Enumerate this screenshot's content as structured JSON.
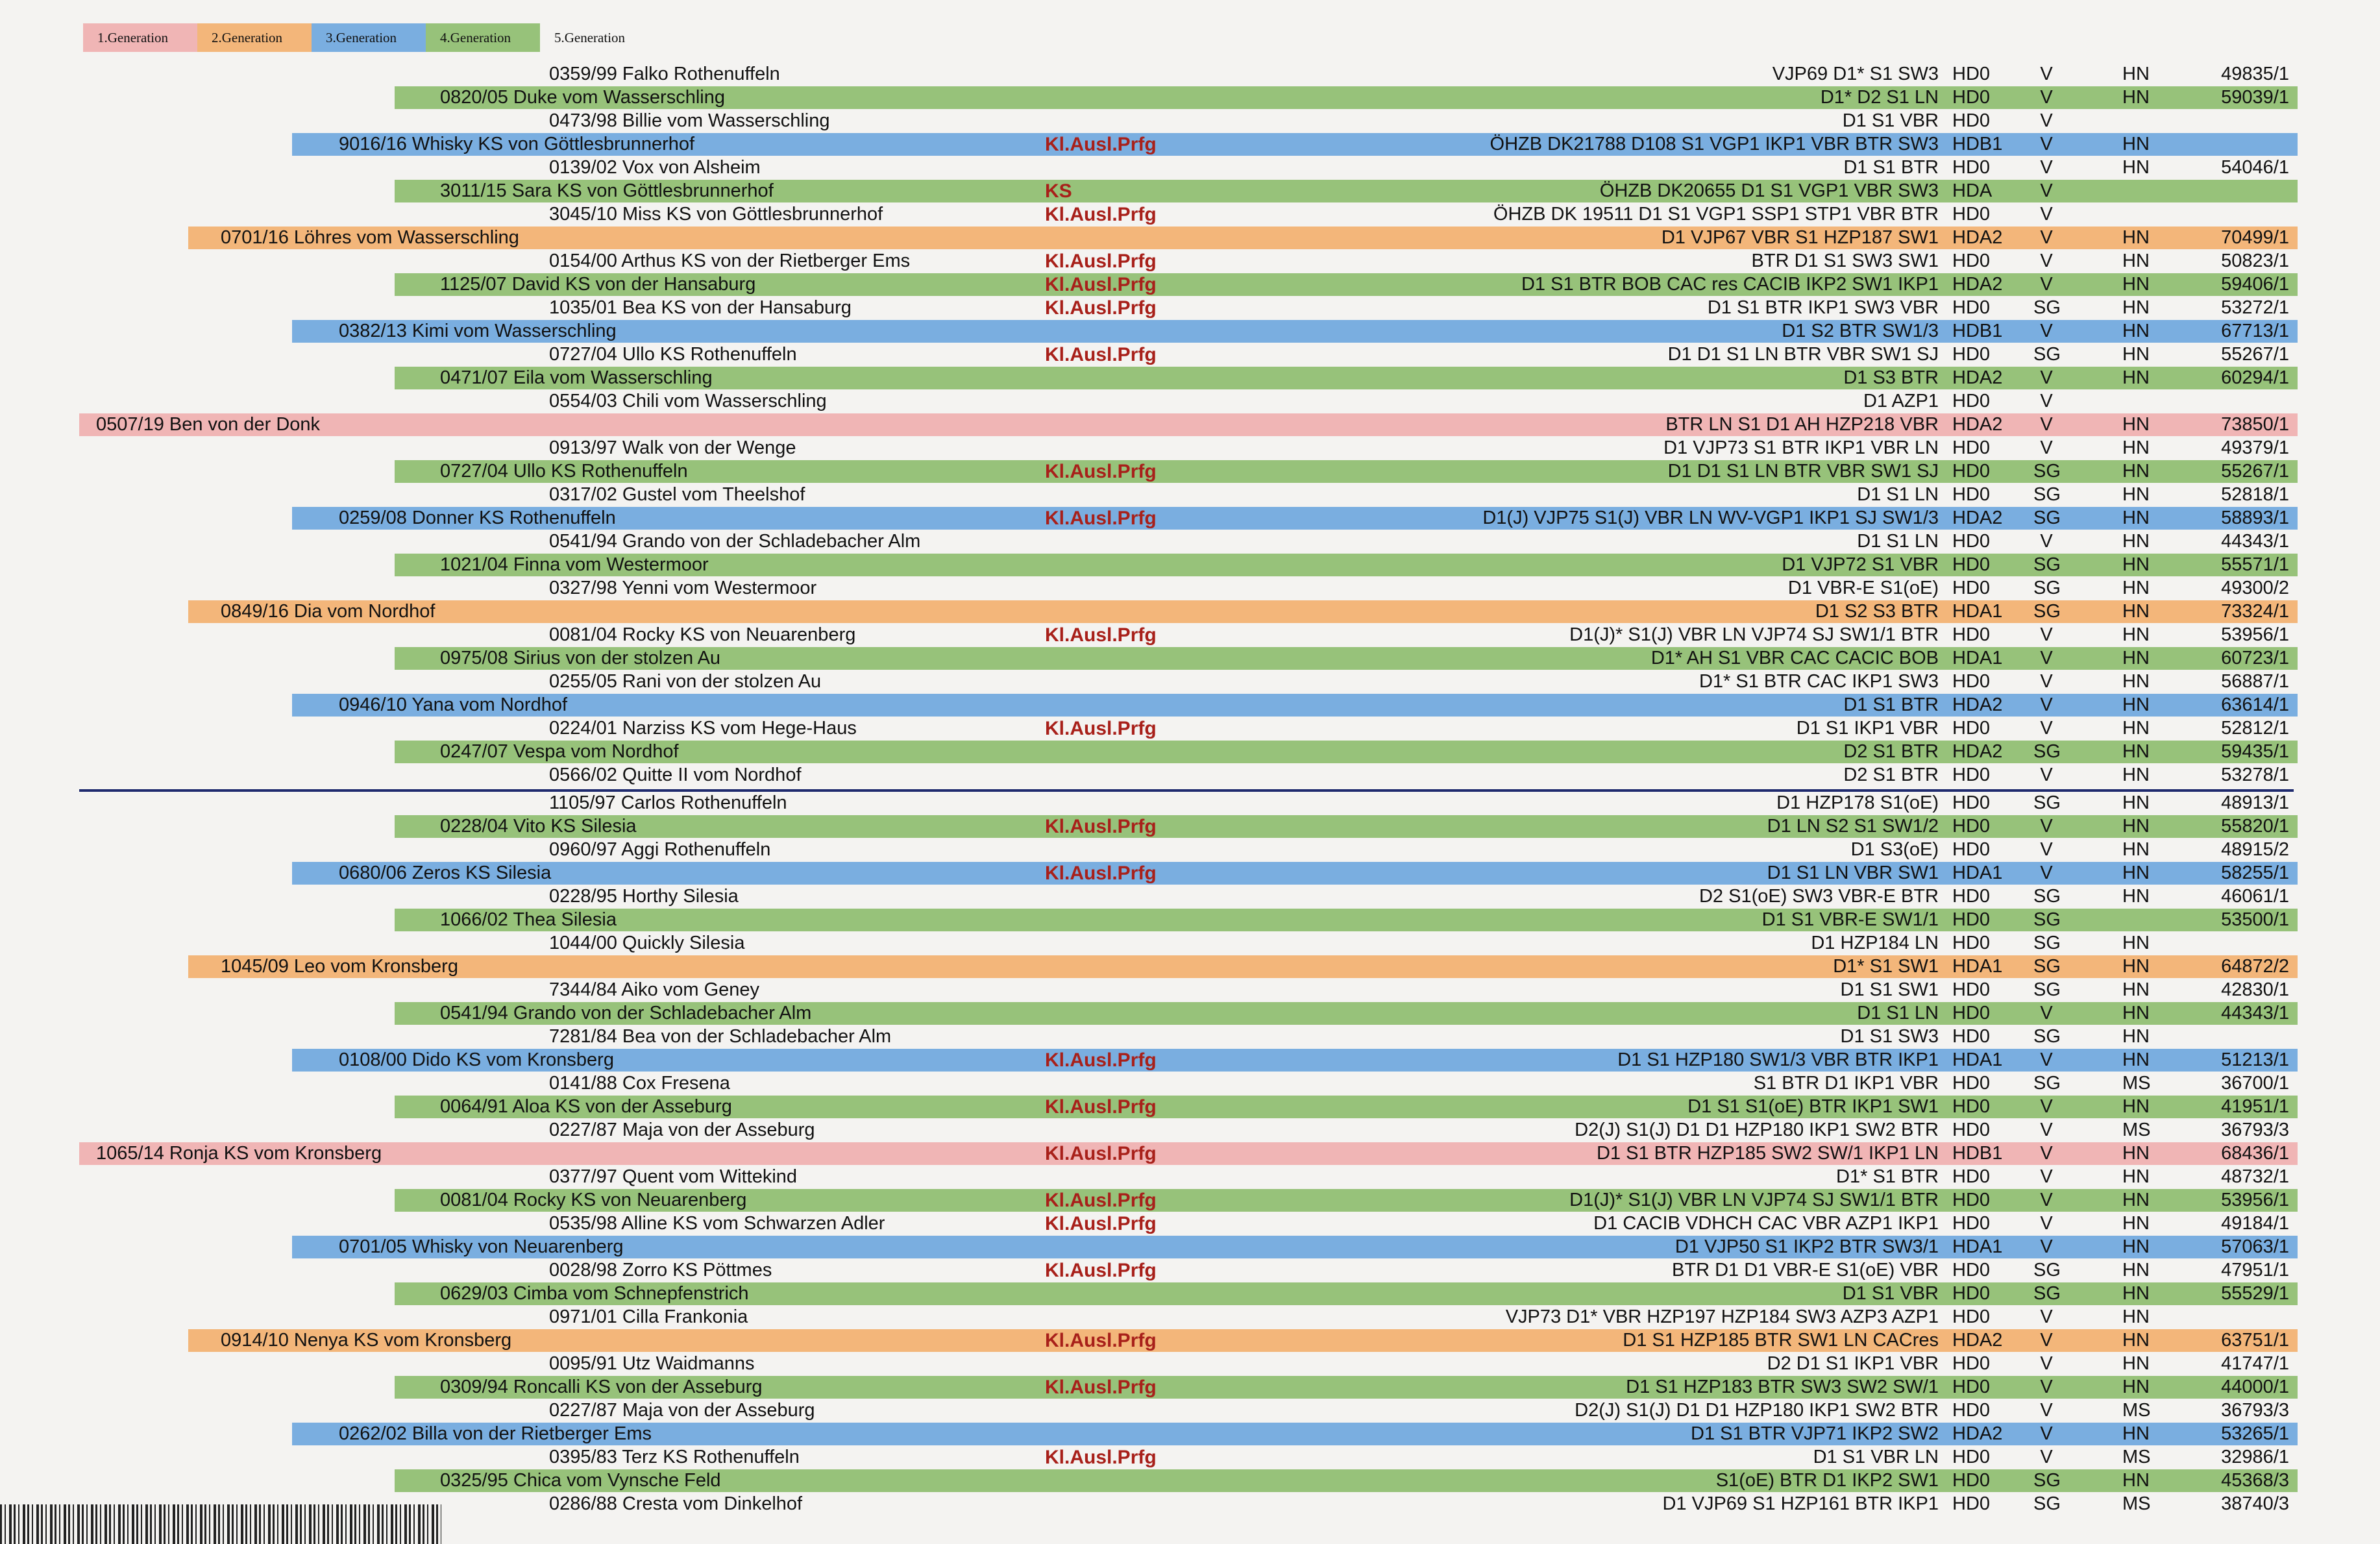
{
  "legend": [
    {
      "label": "1.Generation",
      "color": "#f0b5b5"
    },
    {
      "label": "2.Generation",
      "color": "#f3b67a"
    },
    {
      "label": "3.Generation",
      "color": "#7aaee0"
    },
    {
      "label": "4.Generation",
      "color": "#97c27a"
    },
    {
      "label": "5.Generation",
      "color": ""
    }
  ],
  "gen_colors": {
    "1": "#f0b5b5",
    "2": "#f3b67a",
    "3": "#7aaee0",
    "4": "#97c27a",
    "5": ""
  },
  "rows": [
    {
      "gen": 5,
      "name": "0359/99 Falko  Rothenuffeln",
      "note": "",
      "titles": "VJP69 D1* S1 SW3",
      "hd": "HD0",
      "v": "V",
      "hn": "HN",
      "reg": "49835/1"
    },
    {
      "gen": 4,
      "name": "0820/05 Duke vom Wasserschling",
      "note": "",
      "titles": "D1* D2 S1 LN",
      "hd": "HD0",
      "v": "V",
      "hn": "HN",
      "reg": "59039/1"
    },
    {
      "gen": 5,
      "name": "0473/98 Billie vom Wasserschling",
      "note": "",
      "titles": "D1 S1 VBR",
      "hd": "HD0",
      "v": "V",
      "hn": "",
      "reg": ""
    },
    {
      "gen": 3,
      "name": "9016/16 Whisky KS von Göttlesbrunnerhof",
      "note": "Kl.Ausl.Prfg",
      "titles": "ÖHZB DK21788 D108 S1 VGP1 IKP1 VBR BTR SW3",
      "hd": "HDB1",
      "v": "V",
      "hn": "HN",
      "reg": ""
    },
    {
      "gen": 5,
      "name": "0139/02 Vox von Alsheim",
      "note": "",
      "titles": "D1 S1 BTR",
      "hd": "HD0",
      "v": "V",
      "hn": "HN",
      "reg": "54046/1"
    },
    {
      "gen": 4,
      "name": "3011/15 Sara KS von Göttlesbrunnerhof",
      "note": "KS",
      "titles": "ÖHZB DK20655 D1 S1 VGP1 VBR SW3",
      "hd": "HDA",
      "v": "V",
      "hn": "",
      "reg": ""
    },
    {
      "gen": 5,
      "name": "3045/10 Miss KS von Göttlesbrunnerhof",
      "note": "Kl.Ausl.Prfg",
      "titles": "ÖHZB DK 19511 D1 S1 VGP1 SSP1 STP1 VBR BTR",
      "hd": "HD0",
      "v": "V",
      "hn": "",
      "reg": ""
    },
    {
      "gen": 2,
      "name": "0701/16 Löhres vom Wasserschling",
      "note": "",
      "titles": "D1 VJP67 VBR S1 HZP187 SW1",
      "hd": "HDA2",
      "v": "V",
      "hn": "HN",
      "reg": "70499/1"
    },
    {
      "gen": 5,
      "name": "0154/00 Arthus KS von der Rietberger Ems",
      "note": "Kl.Ausl.Prfg",
      "titles": "BTR D1 S1 SW3 SW1",
      "hd": "HD0",
      "v": "V",
      "hn": "HN",
      "reg": "50823/1"
    },
    {
      "gen": 4,
      "name": "1125/07 David KS von der Hansaburg",
      "note": "Kl.Ausl.Prfg",
      "titles": "D1 S1 BTR BOB CAC res CACIB IKP2 SW1 IKP1",
      "hd": "HDA2",
      "v": "V",
      "hn": "HN",
      "reg": "59406/1"
    },
    {
      "gen": 5,
      "name": "1035/01 Bea KS von der Hansaburg",
      "note": "Kl.Ausl.Prfg",
      "titles": "D1 S1 BTR IKP1 SW3 VBR",
      "hd": "HD0",
      "v": "SG",
      "hn": "HN",
      "reg": "53272/1"
    },
    {
      "gen": 3,
      "name": "0382/13 Kimi vom Wasserschling",
      "note": "",
      "titles": "D1 S2 BTR SW1/3",
      "hd": "HDB1",
      "v": "V",
      "hn": "HN",
      "reg": "67713/1"
    },
    {
      "gen": 5,
      "name": "0727/04 Ullo KS  Rothenuffeln",
      "note": "Kl.Ausl.Prfg",
      "titles": "D1 D1 S1 LN BTR VBR SW1 SJ",
      "hd": "HD0",
      "v": "SG",
      "hn": "HN",
      "reg": "55267/1"
    },
    {
      "gen": 4,
      "name": "0471/07 Eila vom Wasserschling",
      "note": "",
      "titles": "D1 S3 BTR",
      "hd": "HDA2",
      "v": "V",
      "hn": "HN",
      "reg": "60294/1"
    },
    {
      "gen": 5,
      "name": "0554/03 Chili vom Wasserschling",
      "note": "",
      "titles": "D1 AZP1",
      "hd": "HD0",
      "v": "V",
      "hn": "",
      "reg": ""
    },
    {
      "gen": 1,
      "name": "0507/19 Ben von der Donk",
      "note": "",
      "titles": "BTR LN S1 D1 AH HZP218 VBR",
      "hd": "HDA2",
      "v": "V",
      "hn": "HN",
      "reg": "73850/1"
    },
    {
      "gen": 5,
      "name": "0913/97 Walk von der Wenge",
      "note": "",
      "titles": "D1 VJP73 S1 BTR IKP1 VBR LN",
      "hd": "HD0",
      "v": "V",
      "hn": "HN",
      "reg": "49379/1"
    },
    {
      "gen": 4,
      "name": "0727/04 Ullo KS  Rothenuffeln",
      "note": "Kl.Ausl.Prfg",
      "titles": "D1 D1 S1 LN BTR VBR SW1 SJ",
      "hd": "HD0",
      "v": "SG",
      "hn": "HN",
      "reg": "55267/1"
    },
    {
      "gen": 5,
      "name": "0317/02 Gustel vom Theelshof",
      "note": "",
      "titles": "D1 S1 LN",
      "hd": "HD0",
      "v": "SG",
      "hn": "HN",
      "reg": "52818/1"
    },
    {
      "gen": 3,
      "name": "0259/08 Donner KS  Rothenuffeln",
      "note": "Kl.Ausl.Prfg",
      "titles": "D1(J) VJP75 S1(J) VBR LN WV-VGP1 IKP1 SJ SW1/3",
      "hd": "HDA2",
      "v": "SG",
      "hn": "HN",
      "reg": "58893/1"
    },
    {
      "gen": 5,
      "name": "0541/94 Grando von der Schladebacher Alm",
      "note": "",
      "titles": "D1 S1 LN",
      "hd": "HD0",
      "v": "V",
      "hn": "HN",
      "reg": "44343/1"
    },
    {
      "gen": 4,
      "name": "1021/04 Finna vom Westermoor",
      "note": "",
      "titles": "D1 VJP72 S1 VBR",
      "hd": "HD0",
      "v": "SG",
      "hn": "HN",
      "reg": "55571/1"
    },
    {
      "gen": 5,
      "name": "0327/98 Yenni vom Westermoor",
      "note": "",
      "titles": "D1 VBR-E S1(oE)",
      "hd": "HD0",
      "v": "SG",
      "hn": "HN",
      "reg": "49300/2"
    },
    {
      "gen": 2,
      "name": "0849/16 Dia vom Nordhof",
      "note": "",
      "titles": "D1 S2 S3 BTR",
      "hd": "HDA1",
      "v": "SG",
      "hn": "HN",
      "reg": "73324/1"
    },
    {
      "gen": 5,
      "name": "0081/04 Rocky KS von Neuarenberg",
      "note": "Kl.Ausl.Prfg",
      "titles": "D1(J)* S1(J) VBR LN VJP74 SJ SW1/1 BTR",
      "hd": "HD0",
      "v": "V",
      "hn": "HN",
      "reg": "53956/1"
    },
    {
      "gen": 4,
      "name": "0975/08 Sirius von der stolzen Au",
      "note": "",
      "titles": "D1* AH S1 VBR CAC CACIC BOB",
      "hd": "HDA1",
      "v": "V",
      "hn": "HN",
      "reg": "60723/1"
    },
    {
      "gen": 5,
      "name": "0255/05 Rani von der stolzen Au",
      "note": "",
      "titles": "D1* S1 BTR CAC IKP1 SW3",
      "hd": "HD0",
      "v": "V",
      "hn": "HN",
      "reg": "56887/1"
    },
    {
      "gen": 3,
      "name": "0946/10 Yana vom Nordhof",
      "note": "",
      "titles": "D1 S1 BTR",
      "hd": "HDA2",
      "v": "V",
      "hn": "HN",
      "reg": "63614/1"
    },
    {
      "gen": 5,
      "name": "0224/01 Narziss KS vom Hege-Haus",
      "note": "Kl.Ausl.Prfg",
      "titles": "D1 S1 IKP1 VBR",
      "hd": "HD0",
      "v": "V",
      "hn": "HN",
      "reg": "52812/1"
    },
    {
      "gen": 4,
      "name": "0247/07 Vespa vom Nordhof",
      "note": "",
      "titles": "D2 S1 BTR",
      "hd": "HDA2",
      "v": "SG",
      "hn": "HN",
      "reg": "59435/1"
    },
    {
      "gen": 5,
      "name": "0566/02 Quitte II vom Nordhof",
      "note": "",
      "titles": "D2  S1 BTR",
      "hd": "HD0",
      "v": "V",
      "hn": "HN",
      "reg": "53278/1"
    },
    {
      "gen": 5,
      "name": "1105/97 Carlos  Rothenuffeln",
      "note": "",
      "titles": "D1 HZP178 S1(oE)",
      "hd": "HD0",
      "v": "SG",
      "hn": "HN",
      "reg": "48913/1"
    },
    {
      "gen": 4,
      "name": "0228/04 Vito KS  Silesia",
      "note": "Kl.Ausl.Prfg",
      "titles": "D1 LN S2 S1 SW1/2",
      "hd": "HD0",
      "v": "V",
      "hn": "HN",
      "reg": "55820/1"
    },
    {
      "gen": 5,
      "name": "0960/97 Aggi  Rothenuffeln",
      "note": "",
      "titles": "D1 S3(oE)",
      "hd": "HD0",
      "v": "V",
      "hn": "HN",
      "reg": "48915/2"
    },
    {
      "gen": 3,
      "name": "0680/06 Zeros KS  Silesia",
      "note": "Kl.Ausl.Prfg",
      "titles": "D1 S1 LN VBR SW1",
      "hd": "HDA1",
      "v": "V",
      "hn": "HN",
      "reg": "58255/1"
    },
    {
      "gen": 5,
      "name": "0228/95 Horthy  Silesia",
      "note": "",
      "titles": "D2 S1(oE) SW3 VBR-E BTR",
      "hd": "HD0",
      "v": "SG",
      "hn": "HN",
      "reg": "46061/1"
    },
    {
      "gen": 4,
      "name": "1066/02 Thea  Silesia",
      "note": "",
      "titles": "D1 S1 VBR-E SW1/1",
      "hd": "HD0",
      "v": "SG",
      "hn": "",
      "reg": "53500/1"
    },
    {
      "gen": 5,
      "name": "1044/00 Quickly  Silesia",
      "note": "",
      "titles": "D1 HZP184 LN",
      "hd": "HD0",
      "v": "SG",
      "hn": "HN",
      "reg": ""
    },
    {
      "gen": 2,
      "name": "1045/09 Leo vom Kronsberg",
      "note": "",
      "titles": "D1* S1 SW1",
      "hd": "HDA1",
      "v": "SG",
      "hn": "HN",
      "reg": "64872/2"
    },
    {
      "gen": 5,
      "name": "7344/84 Aiko vom Geney",
      "note": "",
      "titles": "D1 S1 SW1",
      "hd": "HD0",
      "v": "SG",
      "hn": "HN",
      "reg": "42830/1"
    },
    {
      "gen": 4,
      "name": "0541/94 Grando von der Schladebacher Alm",
      "note": "",
      "titles": "D1 S1 LN",
      "hd": "HD0",
      "v": "V",
      "hn": "HN",
      "reg": "44343/1"
    },
    {
      "gen": 5,
      "name": "7281/84 Bea von der Schladebacher Alm",
      "note": "",
      "titles": "D1 S1 SW3",
      "hd": "HD0",
      "v": "SG",
      "hn": "HN",
      "reg": ""
    },
    {
      "gen": 3,
      "name": "0108/00 Dido KS vom Kronsberg",
      "note": "Kl.Ausl.Prfg",
      "titles": "D1 S1 HZP180 SW1/3 VBR BTR IKP1",
      "hd": "HDA1",
      "v": "V",
      "hn": "HN",
      "reg": "51213/1"
    },
    {
      "gen": 5,
      "name": "0141/88 Cox  Fresena",
      "note": "",
      "titles": "S1 BTR D1 IKP1 VBR",
      "hd": "HD0",
      "v": "SG",
      "hn": "MS",
      "reg": "36700/1"
    },
    {
      "gen": 4,
      "name": "0064/91 Aloa KS von der Asseburg",
      "note": "Kl.Ausl.Prfg",
      "titles": "D1 S1 S1(oE) BTR IKP1 SW1",
      "hd": "HD0",
      "v": "V",
      "hn": "HN",
      "reg": "41951/1"
    },
    {
      "gen": 5,
      "name": "0227/87 Maja von der Asseburg",
      "note": "",
      "titles": "D2(J) S1(J) D1 D1 HZP180 IKP1 SW2 BTR",
      "hd": "HD0",
      "v": "V",
      "hn": "MS",
      "reg": "36793/3"
    },
    {
      "gen": 1,
      "name": "1065/14 Ronja KS vom Kronsberg",
      "note": "Kl.Ausl.Prfg",
      "titles": "D1 S1 BTR HZP185 SW2 SW/1 IKP1 LN",
      "hd": "HDB1",
      "v": "V",
      "hn": "HN",
      "reg": "68436/1"
    },
    {
      "gen": 5,
      "name": "0377/97 Quent vom Wittekind",
      "note": "",
      "titles": "D1* S1 BTR",
      "hd": "HD0",
      "v": "V",
      "hn": "HN",
      "reg": "48732/1"
    },
    {
      "gen": 4,
      "name": "0081/04 Rocky KS von Neuarenberg",
      "note": "Kl.Ausl.Prfg",
      "titles": "D1(J)* S1(J) VBR LN VJP74 SJ SW1/1 BTR",
      "hd": "HD0",
      "v": "V",
      "hn": "HN",
      "reg": "53956/1"
    },
    {
      "gen": 5,
      "name": "0535/98 Alline KS vom Schwarzen Adler",
      "note": "Kl.Ausl.Prfg",
      "titles": "D1 CACIB VDHCH CAC VBR AZP1 IKP1",
      "hd": "HD0",
      "v": "V",
      "hn": "HN",
      "reg": "49184/1"
    },
    {
      "gen": 3,
      "name": "0701/05 Whisky von Neuarenberg",
      "note": "",
      "titles": "D1 VJP50 S1 IKP2 BTR SW3/1",
      "hd": "HDA1",
      "v": "V",
      "hn": "HN",
      "reg": "57063/1"
    },
    {
      "gen": 5,
      "name": "0028/98 Zorro KS  Pöttmes",
      "note": "Kl.Ausl.Prfg",
      "titles": "BTR D1 D1 VBR-E S1(oE) VBR",
      "hd": "HD0",
      "v": "SG",
      "hn": "HN",
      "reg": "47951/1"
    },
    {
      "gen": 4,
      "name": "0629/03 Cimba vom Schnepfenstrich",
      "note": "",
      "titles": "D1 S1 VBR",
      "hd": "HD0",
      "v": "SG",
      "hn": "HN",
      "reg": "55529/1"
    },
    {
      "gen": 5,
      "name": "0971/01 Cilla  Frankonia",
      "note": "",
      "titles": "VJP73 D1* VBR HZP197 HZP184 SW3 AZP3 AZP1",
      "hd": "HD0",
      "v": "V",
      "hn": "HN",
      "reg": ""
    },
    {
      "gen": 2,
      "name": "0914/10 Nenya KS vom Kronsberg",
      "note": "Kl.Ausl.Prfg",
      "titles": "D1 S1 HZP185 BTR SW1 LN CACres",
      "hd": "HDA2",
      "v": "V",
      "hn": "HN",
      "reg": "63751/1"
    },
    {
      "gen": 5,
      "name": "0095/91 Utz  Waidmanns",
      "note": "",
      "titles": "D2 D1 S1 IKP1 VBR",
      "hd": "HD0",
      "v": "V",
      "hn": "HN",
      "reg": "41747/1"
    },
    {
      "gen": 4,
      "name": "0309/94 Roncalli KS von der Asseburg",
      "note": "Kl.Ausl.Prfg",
      "titles": "D1 S1 HZP183 BTR SW3 SW2 SW/1",
      "hd": "HD0",
      "v": "V",
      "hn": "HN",
      "reg": "44000/1"
    },
    {
      "gen": 5,
      "name": "0227/87 Maja von der Asseburg",
      "note": "",
      "titles": "D2(J) S1(J) D1 D1 HZP180 IKP1 SW2 BTR",
      "hd": "HD0",
      "v": "V",
      "hn": "MS",
      "reg": "36793/3"
    },
    {
      "gen": 3,
      "name": "0262/02 Billa von der Rietberger Ems",
      "note": "",
      "titles": "D1 S1 BTR VJP71 IKP2 SW2",
      "hd": "HDA2",
      "v": "V",
      "hn": "HN",
      "reg": "53265/1"
    },
    {
      "gen": 5,
      "name": "0395/83 Terz KS  Rothenuffeln",
      "note": "Kl.Ausl.Prfg",
      "titles": "D1 S1 VBR LN",
      "hd": "HD0",
      "v": "V",
      "hn": "MS",
      "reg": "32986/1"
    },
    {
      "gen": 4,
      "name": "0325/95 Chica vom Vynsche Feld",
      "note": "",
      "titles": "S1(oE) BTR D1 IKP2 SW1",
      "hd": "HD0",
      "v": "SG",
      "hn": "HN",
      "reg": "45368/3"
    },
    {
      "gen": 5,
      "name": "0286/88 Cresta vom Dinkelhof",
      "note": "",
      "titles": "D1 VJP69 S1 HZP161 BTR IKP1",
      "hd": "HD0",
      "v": "SG",
      "hn": "MS",
      "reg": "38740/3"
    }
  ]
}
